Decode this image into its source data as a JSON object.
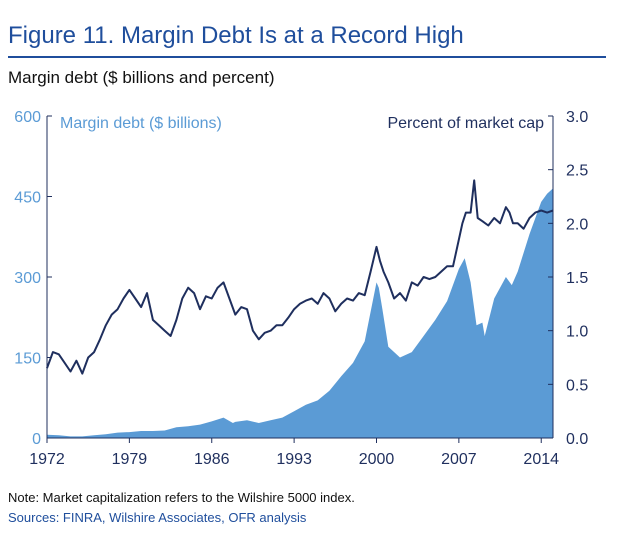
{
  "figure": {
    "title": "Figure 11. Margin Debt Is at a Record High",
    "subtitle": "Margin debt ($ billions and percent)",
    "note": "Note: Market capitalization refers to the Wilshire 5000 index.",
    "sources": "Sources: FINRA, Wilshire Associates, OFR analysis"
  },
  "colors": {
    "area": "#5b9bd5",
    "line": "#1f2f5e",
    "title": "#1f4e9c"
  },
  "chart_data": {
    "type": "area",
    "x_ticks": [
      "1972",
      "1979",
      "1986",
      "1993",
      "2000",
      "2007",
      "2014"
    ],
    "xlim": [
      1972,
      2015
    ],
    "ylim_left": [
      0,
      600
    ],
    "yticks_left": [
      "600",
      "450",
      "300",
      "150",
      "0"
    ],
    "ylim_right": [
      0,
      3.0
    ],
    "yticks_right": [
      "3.0",
      "2.5",
      "2.0",
      "1.5",
      "1.0",
      "0.5",
      "0.0"
    ],
    "grid": false,
    "series": [
      {
        "name": "Margin debt ($ billions)",
        "axis": "left",
        "type": "area",
        "x": [
          1972,
          1973,
          1974,
          1975,
          1976,
          1977,
          1978,
          1979,
          1980,
          1981,
          1982,
          1983,
          1984,
          1985,
          1986,
          1987,
          1987.8,
          1988,
          1989,
          1990,
          1991,
          1992,
          1993,
          1994,
          1995,
          1996,
          1997,
          1998,
          1999,
          1999.5,
          2000,
          2000.2,
          2000.5,
          2001,
          2002,
          2003,
          2004,
          2005,
          2006,
          2007,
          2007.5,
          2008,
          2008.5,
          2009,
          2009.2,
          2010,
          2011,
          2011.5,
          2012,
          2013,
          2014,
          2014.5,
          2015
        ],
        "values": [
          6,
          5,
          3,
          3,
          5,
          7,
          10,
          11,
          13,
          13,
          14,
          20,
          22,
          25,
          31,
          38,
          28,
          30,
          33,
          28,
          33,
          38,
          50,
          62,
          70,
          88,
          115,
          140,
          180,
          235,
          290,
          280,
          240,
          170,
          150,
          160,
          190,
          220,
          255,
          315,
          335,
          290,
          210,
          215,
          190,
          260,
          300,
          285,
          310,
          380,
          440,
          455,
          465
        ]
      },
      {
        "name": "Percent of market cap",
        "axis": "right",
        "type": "line",
        "x": [
          1972,
          1972.5,
          1973,
          1973.5,
          1974,
          1974.5,
          1975,
          1975.5,
          1976,
          1976.5,
          1977,
          1977.5,
          1978,
          1978.5,
          1979,
          1979.5,
          1980,
          1980.5,
          1981,
          1981.5,
          1982,
          1982.5,
          1983,
          1983.5,
          1984,
          1984.5,
          1985,
          1985.5,
          1986,
          1986.5,
          1987,
          1987.5,
          1988,
          1988.5,
          1989,
          1989.5,
          1990,
          1990.5,
          1991,
          1991.5,
          1992,
          1992.5,
          1993,
          1993.5,
          1994,
          1994.5,
          1995,
          1995.5,
          1996,
          1996.5,
          1997,
          1997.5,
          1998,
          1998.5,
          1999,
          1999.5,
          2000,
          2000.3,
          2000.6,
          2001,
          2001.5,
          2002,
          2002.5,
          2003,
          2003.5,
          2004,
          2004.5,
          2005,
          2005.5,
          2006,
          2006.5,
          2007,
          2007.3,
          2007.6,
          2008,
          2008.3,
          2008.6,
          2009,
          2009.5,
          2010,
          2010.5,
          2011,
          2011.3,
          2011.6,
          2012,
          2012.5,
          2013,
          2013.5,
          2014,
          2014.5,
          2015
        ],
        "values": [
          0.65,
          0.8,
          0.78,
          0.7,
          0.62,
          0.72,
          0.6,
          0.75,
          0.8,
          0.92,
          1.05,
          1.15,
          1.2,
          1.3,
          1.38,
          1.3,
          1.22,
          1.35,
          1.1,
          1.05,
          1.0,
          0.95,
          1.1,
          1.3,
          1.4,
          1.35,
          1.2,
          1.32,
          1.3,
          1.4,
          1.45,
          1.3,
          1.15,
          1.22,
          1.2,
          1.0,
          0.92,
          0.98,
          1.0,
          1.05,
          1.05,
          1.12,
          1.2,
          1.25,
          1.28,
          1.3,
          1.25,
          1.35,
          1.3,
          1.18,
          1.25,
          1.3,
          1.28,
          1.35,
          1.33,
          1.55,
          1.78,
          1.65,
          1.55,
          1.45,
          1.3,
          1.35,
          1.28,
          1.45,
          1.42,
          1.5,
          1.48,
          1.5,
          1.55,
          1.6,
          1.6,
          1.85,
          2.0,
          2.1,
          2.1,
          2.4,
          2.05,
          2.02,
          1.98,
          2.05,
          2.0,
          2.15,
          2.1,
          2.0,
          2.0,
          1.95,
          2.05,
          2.1,
          2.12,
          2.1,
          2.12
        ]
      }
    ]
  }
}
